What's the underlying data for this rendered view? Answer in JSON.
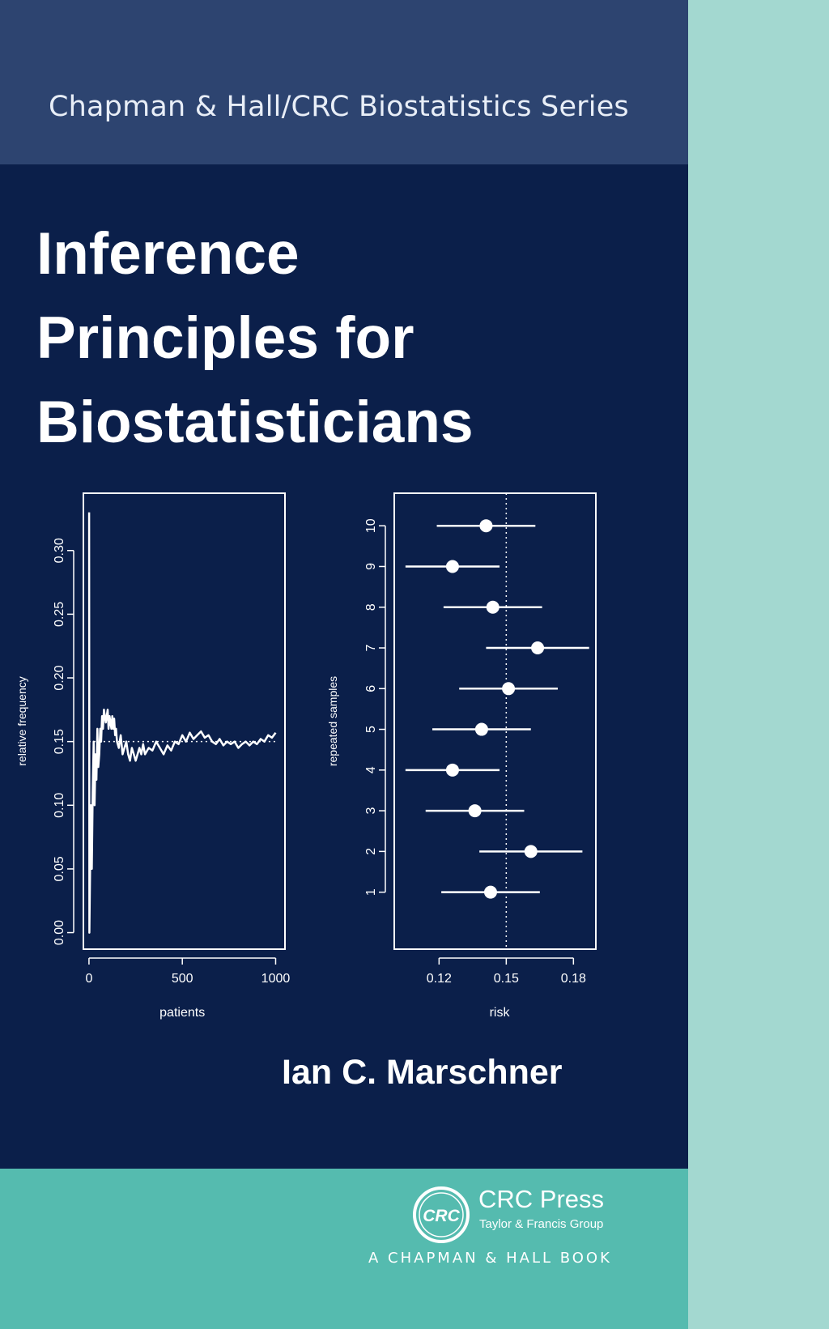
{
  "cover": {
    "series_title": "Chapman & Hall/CRC Biostatistics Series",
    "title_lines": [
      "Inference",
      "Principles for",
      "Biostatisticians"
    ],
    "author": "Ian C. Marschner",
    "publisher": {
      "seal_text": "CRC",
      "name": "CRC Press",
      "group": "Taylor & Francis Group",
      "imprint": "A CHAPMAN & HALL BOOK"
    },
    "colors": {
      "series_band": "#2d4470",
      "main_panel": "#0b1f4a",
      "publisher_band": "#55bbaf",
      "spine": "#a3d8d0",
      "text": "#ffffff"
    }
  },
  "chart_data": [
    {
      "type": "line",
      "xlabel": "patients",
      "ylabel": "relative frequency",
      "xlim": [
        0,
        1000
      ],
      "ylim": [
        0,
        0.33
      ],
      "x_ticks": [
        "0",
        "500",
        "1000"
      ],
      "y_ticks": [
        "0.00",
        "0.05",
        "0.10",
        "0.15",
        "0.20",
        "0.25",
        "0.30"
      ],
      "reference_line": 0.15,
      "grid": false,
      "x": [
        1,
        2,
        10,
        15,
        20,
        25,
        30,
        35,
        40,
        45,
        50,
        55,
        60,
        65,
        70,
        75,
        80,
        85,
        90,
        95,
        100,
        105,
        110,
        115,
        120,
        125,
        130,
        135,
        140,
        145,
        150,
        160,
        170,
        180,
        190,
        200,
        210,
        220,
        230,
        240,
        250,
        260,
        270,
        280,
        290,
        300,
        320,
        340,
        360,
        380,
        400,
        420,
        440,
        460,
        480,
        500,
        520,
        540,
        560,
        580,
        600,
        620,
        640,
        660,
        680,
        700,
        720,
        740,
        760,
        780,
        800,
        820,
        840,
        860,
        880,
        900,
        920,
        940,
        960,
        980,
        1000
      ],
      "y": [
        0.33,
        0.0,
        0.1,
        0.05,
        0.11,
        0.15,
        0.1,
        0.14,
        0.12,
        0.16,
        0.13,
        0.14,
        0.16,
        0.15,
        0.17,
        0.16,
        0.175,
        0.17,
        0.165,
        0.17,
        0.175,
        0.16,
        0.17,
        0.165,
        0.16,
        0.17,
        0.16,
        0.168,
        0.155,
        0.16,
        0.15,
        0.145,
        0.155,
        0.14,
        0.145,
        0.15,
        0.14,
        0.135,
        0.145,
        0.14,
        0.135,
        0.14,
        0.145,
        0.14,
        0.148,
        0.14,
        0.145,
        0.143,
        0.15,
        0.145,
        0.14,
        0.147,
        0.143,
        0.15,
        0.148,
        0.155,
        0.15,
        0.157,
        0.152,
        0.155,
        0.158,
        0.153,
        0.155,
        0.15,
        0.148,
        0.152,
        0.147,
        0.15,
        0.148,
        0.15,
        0.145,
        0.148,
        0.15,
        0.147,
        0.15,
        0.148,
        0.152,
        0.15,
        0.155,
        0.153,
        0.157
      ]
    },
    {
      "type": "scatter",
      "xlabel": "risk",
      "ylabel": "repeated samples",
      "xlim": [
        0.1,
        0.19
      ],
      "ylim": [
        -0.4,
        10.8
      ],
      "x_ticks": [
        "0.12",
        "0.15",
        "0.18"
      ],
      "y_ticks": [
        "1",
        "2",
        "3",
        "4",
        "5",
        "6",
        "7",
        "8",
        "9",
        "10"
      ],
      "reference_line": 0.15,
      "grid": false,
      "points": [
        {
          "sample": 1,
          "estimate": 0.143,
          "lower": 0.121,
          "upper": 0.165
        },
        {
          "sample": 2,
          "estimate": 0.161,
          "lower": 0.138,
          "upper": 0.184
        },
        {
          "sample": 3,
          "estimate": 0.136,
          "lower": 0.114,
          "upper": 0.158
        },
        {
          "sample": 4,
          "estimate": 0.126,
          "lower": 0.105,
          "upper": 0.147
        },
        {
          "sample": 5,
          "estimate": 0.139,
          "lower": 0.117,
          "upper": 0.161
        },
        {
          "sample": 6,
          "estimate": 0.151,
          "lower": 0.129,
          "upper": 0.173
        },
        {
          "sample": 7,
          "estimate": 0.164,
          "lower": 0.141,
          "upper": 0.187
        },
        {
          "sample": 8,
          "estimate": 0.144,
          "lower": 0.122,
          "upper": 0.166
        },
        {
          "sample": 9,
          "estimate": 0.126,
          "lower": 0.105,
          "upper": 0.147
        },
        {
          "sample": 10,
          "estimate": 0.141,
          "lower": 0.119,
          "upper": 0.163
        }
      ]
    }
  ]
}
